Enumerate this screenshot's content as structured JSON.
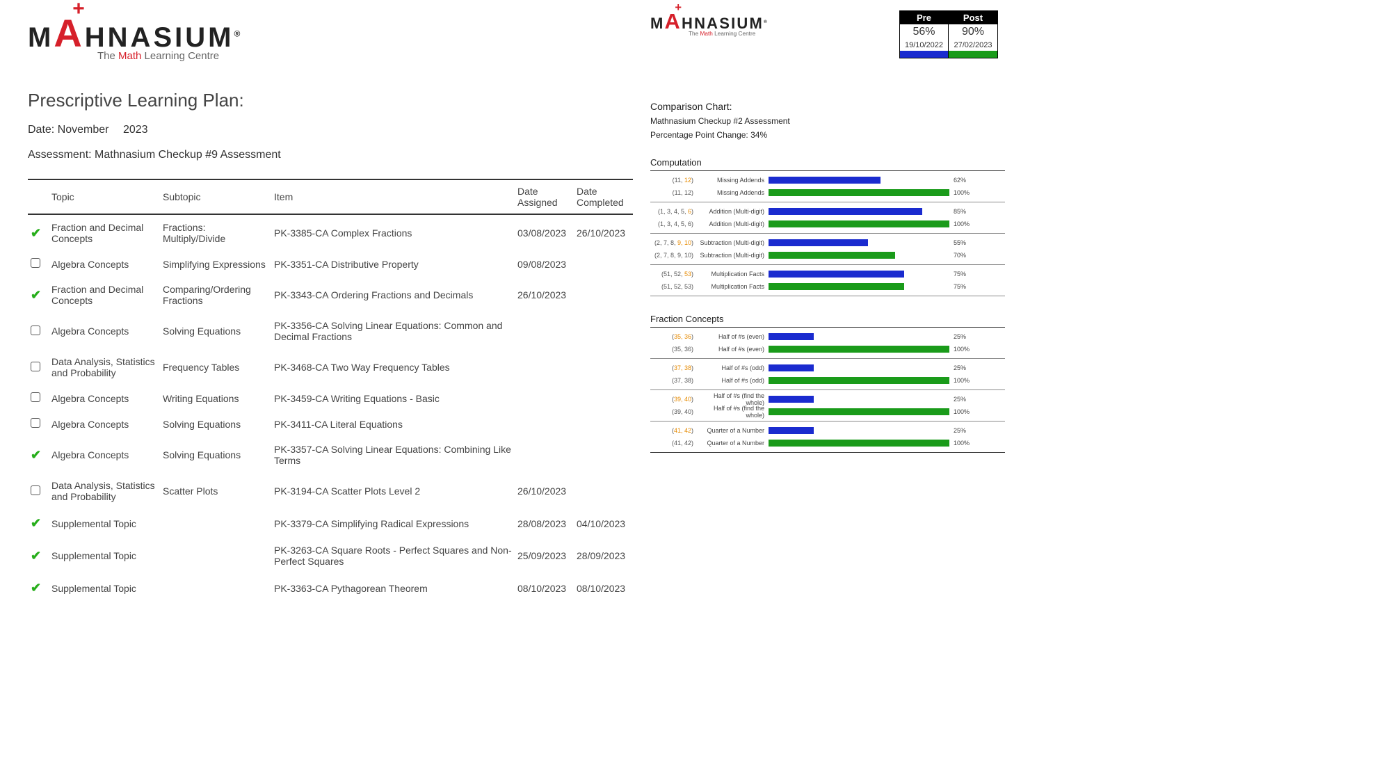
{
  "brand": {
    "name_pre": "M",
    "name_a": "A",
    "name_post": "HNASIUM",
    "tagline_pre": "The ",
    "tagline_math": "Math",
    "tagline_post": " Learning Centre"
  },
  "plan": {
    "title": "Prescriptive Learning Plan:",
    "date_label": "Date: November  2023",
    "assessment_label": "Assessment: Mathnasium Checkup #9 Assessment",
    "headers": {
      "topic": "Topic",
      "subtopic": "Subtopic",
      "item": "Item",
      "assigned": "Date Assigned",
      "completed": "Date Completed"
    },
    "rows": [
      {
        "status": "check",
        "topic": "Fraction and Decimal Concepts",
        "subtopic": "Fractions: Multiply/Divide",
        "item": "PK-3385-CA Complex Fractions",
        "assigned": "03/08/2023",
        "completed": "26/10/2023"
      },
      {
        "status": "box",
        "topic": "Algebra Concepts",
        "subtopic": "Simplifying Expressions",
        "item": "PK-3351-CA Distributive Property",
        "assigned": "09/08/2023",
        "completed": ""
      },
      {
        "status": "check",
        "topic": "Fraction and Decimal Concepts",
        "subtopic": "Comparing/Ordering Fractions",
        "item": "PK-3343-CA Ordering Fractions and Decimals",
        "assigned": "26/10/2023",
        "completed": ""
      },
      {
        "status": "box",
        "topic": "Algebra Concepts",
        "subtopic": "Solving Equations",
        "item": "PK-3356-CA Solving Linear Equations: Common and Decimal Fractions",
        "assigned": "",
        "completed": ""
      },
      {
        "status": "box",
        "topic": "Data Analysis, Statistics and Probability",
        "subtopic": "Frequency Tables",
        "item": "PK-3468-CA Two Way Frequency Tables",
        "assigned": "",
        "completed": ""
      },
      {
        "status": "box",
        "topic": "Algebra Concepts",
        "subtopic": "Writing Equations",
        "item": "PK-3459-CA Writing Equations - Basic",
        "assigned": "",
        "completed": ""
      },
      {
        "status": "box",
        "topic": "Algebra Concepts",
        "subtopic": "Solving Equations",
        "item": "PK-3411-CA Literal Equations",
        "assigned": "",
        "completed": ""
      },
      {
        "status": "check",
        "topic": "Algebra Concepts",
        "subtopic": "Solving Equations",
        "item": "PK-3357-CA Solving Linear Equations: Combining Like Terms",
        "assigned": "",
        "completed": ""
      },
      {
        "status": "box",
        "topic": "Data Analysis, Statistics and Probability",
        "subtopic": "Scatter Plots",
        "item": "PK-3194-CA Scatter Plots Level 2",
        "assigned": "26/10/2023",
        "completed": ""
      },
      {
        "status": "check",
        "topic": "Supplemental Topic",
        "subtopic": "",
        "item": "PK-3379-CA Simplifying Radical Expressions",
        "assigned": "28/08/2023",
        "completed": "04/10/2023"
      },
      {
        "status": "check",
        "topic": "Supplemental Topic",
        "subtopic": "",
        "item": "PK-3263-CA Square Roots - Perfect Squares and Non-Perfect Squares",
        "assigned": "25/09/2023",
        "completed": "28/09/2023"
      },
      {
        "status": "check",
        "topic": "Supplemental Topic",
        "subtopic": "",
        "item": "PK-3363-CA Pythagorean Theorem",
        "assigned": "08/10/2023",
        "completed": "08/10/2023"
      }
    ]
  },
  "scorebox": {
    "pre_label": "Pre",
    "post_label": "Post",
    "pre_pct": "56%",
    "post_pct": "90%",
    "pre_date": "19/10/2022",
    "post_date": "27/02/2023",
    "pre_color": "#1a2bcf",
    "post_color": "#1a9b1a"
  },
  "comparison": {
    "title": "Comparison Chart:",
    "sub": "Mathnasium Checkup #2 Assessment",
    "change": "Percentage Point Change:   34%"
  },
  "colors": {
    "pre": "#1a2bcf",
    "post": "#1a9b1a",
    "accent": "#d6202a"
  },
  "sections": [
    {
      "title": "Computation",
      "groups": [
        {
          "ref_plain": "(11, ",
          "ref_hi": "12",
          "ref_end": ")",
          "label": "Missing Addends",
          "pre": 62,
          "post": 100
        },
        {
          "ref_plain": "(1, 3, 4, 5, ",
          "ref_hi": "6",
          "ref_end": ")",
          "label": "Addition (Multi-digit)",
          "pre": 85,
          "post": 100
        },
        {
          "ref_plain": "(2, 7, 8, ",
          "ref_hi": "9, 10",
          "ref_end": ")",
          "label": "Subtraction (Multi-digit)",
          "pre": 55,
          "post": 70
        },
        {
          "ref_plain": "(51, 52, ",
          "ref_hi": "53",
          "ref_end": ")",
          "label": "Multiplication Facts",
          "pre": 75,
          "post": 75
        }
      ]
    },
    {
      "title": "Fraction Concepts",
      "groups": [
        {
          "ref_plain": "(",
          "ref_hi": "35, 36",
          "ref_end": ")",
          "label": "Half of #s (even)",
          "pre": 25,
          "post": 100
        },
        {
          "ref_plain": "(",
          "ref_hi": "37, 38",
          "ref_end": ")",
          "label": "Half of #s (odd)",
          "pre": 25,
          "post": 100
        },
        {
          "ref_plain": "(",
          "ref_hi": "39, 40",
          "ref_end": ")",
          "label": "Half of #s (find the whole)",
          "pre": 25,
          "post": 100
        },
        {
          "ref_plain": "(",
          "ref_hi": "41, 42",
          "ref_end": ")",
          "label": "Quarter of a Number",
          "pre": 25,
          "post": 100
        }
      ]
    }
  ]
}
